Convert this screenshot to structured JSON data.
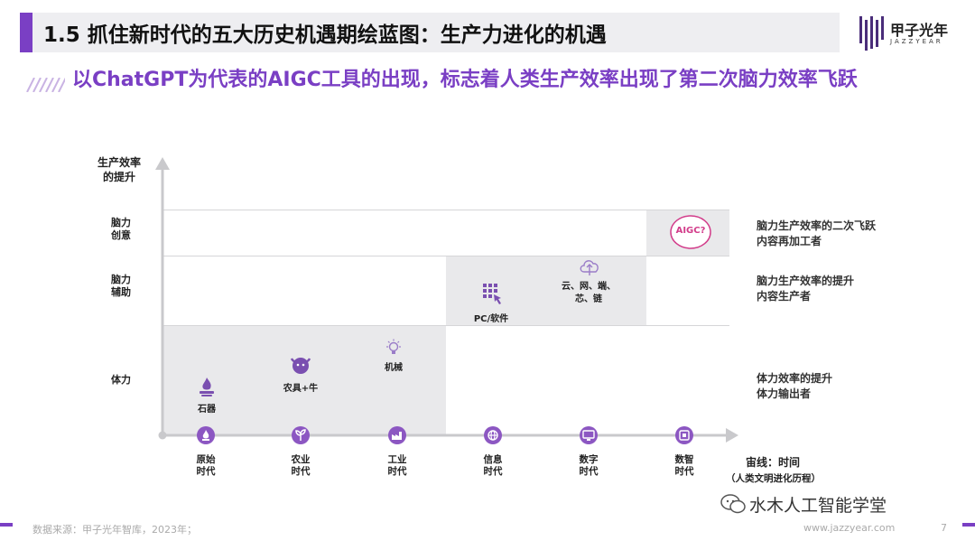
{
  "header": {
    "title": "1.5 抓住新时代的五大历史机遇期绘蓝图：生产力进化的机遇",
    "subtitle": "以ChatGPT为代表的AIGC工具的出现，标志着人类生产效率出现了第二次脑力效率飞跃"
  },
  "logo": {
    "name": "甲子光年",
    "sub": "JAZZYEAR"
  },
  "diagram": {
    "y_axis_title": [
      "生产效率",
      "的提升"
    ],
    "x_axis_title": "宙线：时间",
    "x_axis_subtitle": "（人类文明进化历程）",
    "levels": [
      {
        "label": [
          "脑力",
          "创意"
        ],
        "desc": [
          "脑力生产效率的二次飞跃",
          "内容再加工者"
        ]
      },
      {
        "label": [
          "脑力",
          "辅助"
        ],
        "desc": [
          "脑力生产效率的提升",
          "内容生产者"
        ]
      },
      {
        "label": [
          "体力"
        ],
        "desc": [
          "体力效率的提升",
          "体力输出者"
        ]
      }
    ],
    "items": {
      "stone": "石器",
      "farm": "农具+牛",
      "machine": "机械",
      "pc": "PC/软件",
      "cloud": [
        "云、网、端、",
        "芯、链"
      ],
      "aigc": "AIGC?"
    },
    "eras": [
      {
        "label": [
          "原始",
          "时代"
        ],
        "icon": "fire-icon"
      },
      {
        "label": [
          "农业",
          "时代"
        ],
        "icon": "sprout-icon"
      },
      {
        "label": [
          "工业",
          "时代"
        ],
        "icon": "factory-icon"
      },
      {
        "label": [
          "信息",
          "时代"
        ],
        "icon": "globe-icon"
      },
      {
        "label": [
          "数字",
          "时代"
        ],
        "icon": "screen-icon"
      },
      {
        "label": [
          "数智",
          "时代"
        ],
        "icon": "ai-chip-icon"
      }
    ]
  },
  "footer": {
    "source": "数据来源：甲子光年智库，2023年；",
    "url": "www.jazzyear.com",
    "page": "7"
  },
  "watermark": {
    "wechat": "水木人工智能学堂"
  },
  "colors": {
    "accent": "#7a3fc4",
    "band": "#e9e9eb",
    "era_dot": "#8c57c2",
    "aigc": "#d23c8a"
  }
}
